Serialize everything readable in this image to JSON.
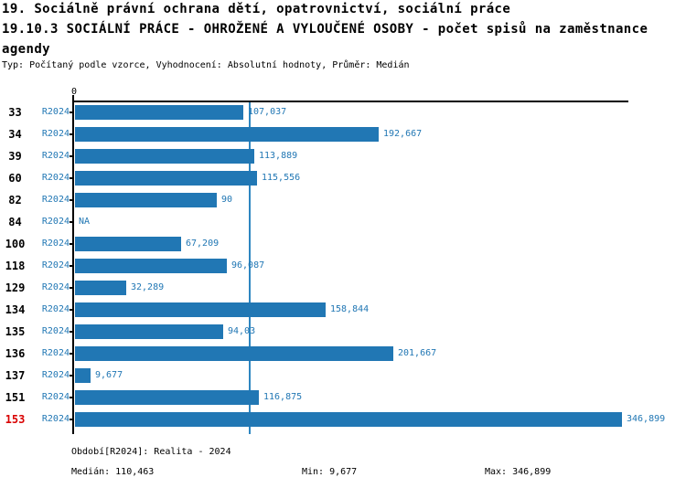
{
  "header": {
    "title_line1": "19. Sociálně právní ochrana dětí, opatrovnictví, sociální práce",
    "title_line2": "19.10.3 SOCIÁLNÍ PRÁCE - OHROŽENÉ A VYLOUČENÉ OSOBY - počet spisů na zaměstnance",
    "title_line3": "agendy",
    "subtitle": "Typ: Počítaný podle vzorce, Vyhodnocení: Absolutní hodnoty, Průměr: Medián"
  },
  "colors": {
    "bar": "#2177b4",
    "accent_text": "#2177b4",
    "median_line": "#2e86c1",
    "highlight_row": "#d90000"
  },
  "chart_data": {
    "type": "bar",
    "orientation": "horizontal",
    "axis_zero_label": "0",
    "xmax": 351,
    "median_value": 110.463,
    "average_type": "Medián",
    "rows": [
      {
        "id": "33",
        "period": "R2024",
        "value": 107.037,
        "value_label": "107,037",
        "highlight": false
      },
      {
        "id": "34",
        "period": "R2024",
        "value": 192.667,
        "value_label": "192,667",
        "highlight": false
      },
      {
        "id": "39",
        "period": "R2024",
        "value": 113.889,
        "value_label": "113,889",
        "highlight": false
      },
      {
        "id": "60",
        "period": "R2024",
        "value": 115.556,
        "value_label": "115,556",
        "highlight": false
      },
      {
        "id": "82",
        "period": "R2024",
        "value": 90,
        "value_label": "90",
        "highlight": false
      },
      {
        "id": "84",
        "period": "R2024",
        "value": null,
        "value_label": "NA",
        "highlight": false
      },
      {
        "id": "100",
        "period": "R2024",
        "value": 67.209,
        "value_label": "67,209",
        "highlight": false
      },
      {
        "id": "118",
        "period": "R2024",
        "value": 96.087,
        "value_label": "96,087",
        "highlight": false
      },
      {
        "id": "129",
        "period": "R2024",
        "value": 32.289,
        "value_label": "32,289",
        "highlight": false
      },
      {
        "id": "134",
        "period": "R2024",
        "value": 158.844,
        "value_label": "158,844",
        "highlight": false
      },
      {
        "id": "135",
        "period": "R2024",
        "value": 94.03,
        "value_label": "94,03",
        "highlight": false
      },
      {
        "id": "136",
        "period": "R2024",
        "value": 201.667,
        "value_label": "201,667",
        "highlight": false
      },
      {
        "id": "137",
        "period": "R2024",
        "value": 9.677,
        "value_label": "9,677",
        "highlight": false
      },
      {
        "id": "151",
        "period": "R2024",
        "value": 116.875,
        "value_label": "116,875",
        "highlight": false
      },
      {
        "id": "153",
        "period": "R2024",
        "value": 346.899,
        "value_label": "346,899",
        "highlight": true
      }
    ]
  },
  "footer": {
    "period_info": "Období[R2024]: Realita - 2024",
    "median": "Medián: 110,463",
    "min": "Min: 9,677",
    "max": "Max: 346,899"
  }
}
